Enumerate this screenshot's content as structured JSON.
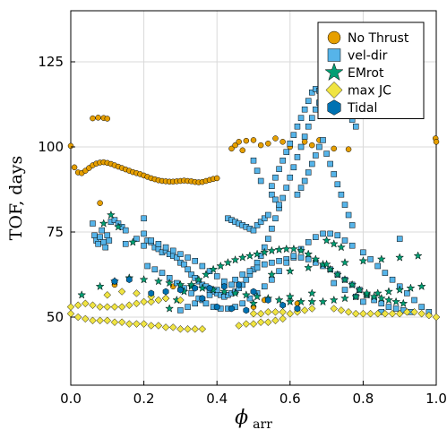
{
  "chart_data": {
    "type": "scatter",
    "xlabel": "ϕ",
    "xlabel_sub": "arr",
    "ylabel": "TOF, days",
    "xlim": [
      0.0,
      1.0
    ],
    "ylim": [
      30,
      140
    ],
    "xticks": [
      0.0,
      0.2,
      0.4,
      0.6,
      0.8,
      1.0
    ],
    "xtick_labels": [
      "0.0",
      "0.2",
      "0.4",
      "0.6",
      "0.8",
      "1.0"
    ],
    "yticks": [
      50,
      75,
      100,
      125
    ],
    "ytick_labels": [
      "50",
      "75",
      "100",
      "125"
    ],
    "grid": true,
    "legend_position": "top-right",
    "series": [
      {
        "name": "No Thrust",
        "marker": "circle",
        "color": "#E69F00",
        "x": [
          0.0,
          0.01,
          0.02,
          0.03,
          0.04,
          0.05,
          0.06,
          0.07,
          0.08,
          0.09,
          0.1,
          0.11,
          0.12,
          0.13,
          0.14,
          0.15,
          0.16,
          0.17,
          0.18,
          0.19,
          0.2,
          0.21,
          0.22,
          0.23,
          0.24,
          0.25,
          0.26,
          0.27,
          0.28,
          0.29,
          0.3,
          0.31,
          0.32,
          0.33,
          0.34,
          0.35,
          0.36,
          0.37,
          0.38,
          0.39,
          0.4,
          0.06,
          0.075,
          0.09,
          0.1,
          0.44,
          0.45,
          0.46,
          0.47,
          0.48,
          0.5,
          0.52,
          0.54,
          0.56,
          0.58,
          0.6,
          0.64,
          0.66,
          0.68,
          0.72,
          0.76,
          0.998,
          1.0,
          0.08,
          0.12,
          0.28,
          0.5,
          0.53,
          0.62
        ],
        "y": [
          100.3,
          94.0,
          92.5,
          92.3,
          93.0,
          93.8,
          94.6,
          95.1,
          95.4,
          95.5,
          95.3,
          95.0,
          94.6,
          94.2,
          93.8,
          93.4,
          93.0,
          92.6,
          92.3,
          92.0,
          91.6,
          91.2,
          90.8,
          90.5,
          90.2,
          90.0,
          89.9,
          89.8,
          89.8,
          89.9,
          90.0,
          90.1,
          90.0,
          89.9,
          89.7,
          89.6,
          89.7,
          90.0,
          90.3,
          90.6,
          90.8,
          108.4,
          108.6,
          108.5,
          108.3,
          99.5,
          100.5,
          101.5,
          99.0,
          101.8,
          102.0,
          100.5,
          101.0,
          102.5,
          101.5,
          100.0,
          101.5,
          100.5,
          102.0,
          99.5,
          99.3,
          102.5,
          101.5,
          83.5,
          59.5,
          59.0,
          53.0,
          55.0,
          54.0
        ]
      },
      {
        "name": "vel-dir",
        "marker": "square",
        "color": "#56B4E9",
        "x": [
          0.06,
          0.065,
          0.07,
          0.075,
          0.08,
          0.085,
          0.09,
          0.095,
          0.1,
          0.105,
          0.11,
          0.12,
          0.13,
          0.14,
          0.15,
          0.2,
          0.2,
          0.21,
          0.22,
          0.23,
          0.24,
          0.25,
          0.26,
          0.27,
          0.28,
          0.29,
          0.3,
          0.31,
          0.32,
          0.33,
          0.34,
          0.35,
          0.36,
          0.37,
          0.38,
          0.39,
          0.4,
          0.41,
          0.42,
          0.43,
          0.44,
          0.45,
          0.46,
          0.47,
          0.48,
          0.49,
          0.5,
          0.51,
          0.52,
          0.53,
          0.54,
          0.55,
          0.56,
          0.57,
          0.58,
          0.59,
          0.6,
          0.61,
          0.62,
          0.63,
          0.64,
          0.65,
          0.66,
          0.67,
          0.68,
          0.69,
          0.7,
          0.71,
          0.72,
          0.73,
          0.74,
          0.75,
          0.76,
          0.77,
          0.78,
          0.55,
          0.56,
          0.57,
          0.58,
          0.59,
          0.6,
          0.61,
          0.62,
          0.63,
          0.64,
          0.65,
          0.66,
          0.67,
          0.68,
          0.43,
          0.44,
          0.45,
          0.46,
          0.47,
          0.48,
          0.49,
          0.5,
          0.51,
          0.52,
          0.53,
          0.54,
          0.5,
          0.51,
          0.52,
          0.55,
          0.56,
          0.57,
          0.62,
          0.63,
          0.64,
          0.65,
          0.66,
          0.67,
          0.68,
          0.69,
          0.7,
          0.71,
          0.72,
          0.73,
          0.74,
          0.75,
          0.76,
          0.77,
          0.3,
          0.32,
          0.34,
          0.36,
          0.38,
          0.4,
          0.42,
          0.45,
          0.47,
          0.49,
          0.51,
          0.53,
          0.55,
          0.57,
          0.59,
          0.61,
          0.63,
          0.65,
          0.67,
          0.69,
          0.71,
          0.73,
          0.75,
          0.77,
          0.79,
          0.81,
          0.83,
          0.85,
          0.87,
          0.89,
          0.91,
          0.93,
          0.21,
          0.23,
          0.25,
          0.27,
          0.29,
          0.31,
          0.33,
          0.35,
          0.37,
          0.39,
          0.41,
          0.43,
          0.45,
          0.47,
          0.49,
          0.51,
          0.53,
          0.55,
          0.57,
          0.59,
          0.61,
          0.63,
          0.65,
          0.67,
          0.69,
          0.71,
          0.73,
          0.75,
          0.77,
          0.8,
          0.82,
          0.84,
          0.86,
          0.88,
          0.9,
          0.92,
          0.94,
          0.96,
          0.98,
          0.72,
          0.75,
          0.78,
          0.8,
          0.85,
          0.9,
          0.15,
          0.18,
          0.2,
          0.22,
          0.24,
          0.26,
          0.28,
          0.3,
          0.32,
          0.34,
          0.36,
          0.38,
          0.4,
          0.42,
          0.44
        ],
        "y": [
          77.5,
          74.0,
          72.5,
          71.5,
          73.5,
          75.5,
          72.0,
          70.5,
          74.0,
          72.5,
          78.0,
          78.5,
          77.5,
          76.5,
          75.5,
          79.0,
          74.5,
          72.5,
          72.0,
          70.5,
          70.0,
          69.0,
          69.5,
          68.5,
          68.0,
          67.5,
          66.0,
          65.5,
          64.0,
          62.5,
          61.5,
          60.5,
          59.5,
          59.0,
          58.0,
          57.5,
          57.0,
          56.5,
          56.0,
          56.5,
          57.0,
          57.5,
          58.5,
          59.5,
          61.0,
          62.5,
          64.0,
          66.0,
          68.0,
          70.5,
          73.0,
          76.0,
          79.0,
          82.0,
          85.0,
          88.0,
          91.0,
          94.0,
          97.0,
          100.0,
          103.0,
          106.0,
          108.5,
          111.0,
          113.0,
          114.0,
          115.5,
          116.0,
          115.5,
          115.0,
          113.5,
          112.0,
          110.0,
          108.0,
          106.0,
          88.5,
          91.0,
          93.5,
          96.0,
          98.5,
          101.0,
          103.5,
          106.0,
          108.5,
          111.0,
          113.5,
          116.0,
          117.0,
          116.5,
          79.0,
          78.5,
          78.0,
          77.5,
          77.0,
          76.5,
          76.0,
          75.5,
          77.0,
          78.0,
          79.0,
          80.0,
          96.0,
          93.0,
          90.0,
          86.0,
          84.5,
          83.0,
          86.0,
          88.0,
          90.0,
          92.5,
          95.0,
          97.5,
          100.0,
          102.0,
          98.0,
          95.0,
          92.0,
          89.0,
          86.0,
          83.0,
          80.0,
          77.0,
          52.0,
          53.0,
          54.0,
          55.0,
          56.5,
          58.0,
          59.5,
          61.0,
          62.5,
          63.5,
          64.5,
          65.5,
          66.0,
          66.5,
          67.0,
          67.5,
          67.5,
          67.0,
          66.0,
          65.0,
          64.0,
          62.5,
          61.0,
          59.5,
          58.0,
          56.5,
          55.0,
          54.0,
          53.0,
          52.5,
          52.0,
          51.5,
          65.0,
          64.0,
          63.0,
          61.5,
          60.0,
          58.5,
          57.0,
          55.5,
          54.0,
          53.0,
          52.5,
          52.5,
          53.0,
          54.0,
          55.5,
          57.0,
          59.0,
          61.0,
          63.5,
          66.0,
          68.0,
          70.0,
          72.0,
          73.5,
          74.5,
          74.5,
          74.0,
          72.5,
          71.0,
          69.0,
          67.0,
          65.0,
          63.0,
          61.0,
          59.0,
          57.0,
          55.0,
          53.0,
          51.5,
          60.0,
          58.0,
          56.0,
          54.5,
          51.5,
          73.0,
          71.5,
          73.0,
          71.0,
          72.5,
          71.5,
          70.5,
          69.5,
          68.5,
          67.5,
          66.5,
          65.0,
          63.5,
          62.0,
          60.5,
          59.5
        ]
      },
      {
        "name": "EMrot",
        "marker": "star",
        "color": "#009E73",
        "x": [
          0.03,
          0.08,
          0.12,
          0.16,
          0.2,
          0.24,
          0.27,
          0.3,
          0.33,
          0.36,
          0.39,
          0.42,
          0.45,
          0.48,
          0.51,
          0.54,
          0.57,
          0.6,
          0.63,
          0.66,
          0.69,
          0.72,
          0.75,
          0.78,
          0.81,
          0.84,
          0.87,
          0.9,
          0.93,
          0.96,
          0.27,
          0.29,
          0.31,
          0.33,
          0.35,
          0.37,
          0.39,
          0.41,
          0.43,
          0.45,
          0.47,
          0.49,
          0.51,
          0.53,
          0.55,
          0.57,
          0.59,
          0.61,
          0.63,
          0.65,
          0.67,
          0.69,
          0.71,
          0.73,
          0.75,
          0.77,
          0.79,
          0.81,
          0.83,
          0.85,
          0.87,
          0.89,
          0.91,
          0.55,
          0.6,
          0.65,
          0.7,
          0.75,
          0.8,
          0.85,
          0.9,
          0.95,
          0.7,
          0.72,
          0.74,
          0.5,
          0.6,
          0.66,
          0.09,
          0.11,
          0.13,
          0.17
        ],
        "y": [
          56.5,
          59.0,
          60.5,
          61.5,
          61.0,
          60.5,
          60.0,
          59.5,
          59.0,
          58.5,
          58.0,
          57.5,
          57.0,
          56.5,
          56.0,
          55.5,
          55.0,
          54.5,
          54.5,
          54.5,
          54.5,
          55.0,
          55.5,
          56.0,
          56.5,
          57.0,
          57.5,
          58.0,
          58.5,
          59.0,
          52.5,
          55.0,
          57.5,
          59.5,
          61.0,
          62.5,
          64.0,
          65.0,
          66.0,
          66.8,
          67.5,
          68.0,
          68.5,
          69.0,
          69.5,
          69.8,
          70.0,
          70.0,
          69.5,
          68.5,
          67.0,
          65.5,
          64.0,
          62.5,
          61.0,
          59.5,
          58.0,
          57.0,
          56.0,
          55.5,
          55.0,
          54.5,
          54.0,
          62.5,
          63.5,
          64.5,
          65.5,
          66.0,
          66.5,
          67.0,
          67.5,
          68.0,
          72.5,
          71.5,
          70.5,
          54.0,
          56.0,
          57.0,
          77.5,
          80.0,
          76.5,
          72.0
        ]
      },
      {
        "name": "max JC",
        "marker": "diamond",
        "color": "#F0E442",
        "x": [
          0.0,
          0.02,
          0.04,
          0.06,
          0.08,
          0.1,
          0.12,
          0.14,
          0.16,
          0.18,
          0.2,
          0.22,
          0.24,
          0.26,
          0.28,
          0.3,
          0.32,
          0.34,
          0.36,
          0.0,
          0.02,
          0.04,
          0.06,
          0.08,
          0.1,
          0.12,
          0.14,
          0.16,
          0.18,
          0.2,
          0.22,
          0.24,
          0.26,
          0.46,
          0.48,
          0.5,
          0.52,
          0.54,
          0.56,
          0.58,
          0.5,
          0.52,
          0.54,
          0.56,
          0.58,
          0.6,
          0.62,
          0.64,
          0.66,
          0.72,
          0.74,
          0.76,
          0.78,
          0.8,
          0.82,
          0.84,
          0.86,
          0.88,
          0.9,
          0.92,
          0.94,
          0.96,
          0.98,
          1.0,
          0.1,
          0.14,
          0.18,
          0.22,
          0.26,
          0.3
        ],
        "y": [
          51.0,
          50.0,
          49.5,
          49.0,
          49.0,
          49.0,
          48.5,
          48.5,
          48.0,
          48.0,
          48.0,
          47.5,
          47.5,
          47.0,
          47.0,
          46.5,
          46.5,
          46.5,
          46.5,
          53.0,
          53.5,
          54.0,
          53.5,
          53.0,
          53.0,
          53.0,
          53.0,
          53.5,
          54.0,
          54.5,
          54.5,
          55.0,
          55.5,
          47.5,
          48.0,
          48.0,
          48.5,
          48.5,
          49.0,
          49.5,
          51.0,
          51.0,
          51.5,
          51.5,
          51.5,
          51.0,
          51.5,
          52.0,
          52.5,
          52.5,
          52.0,
          51.5,
          51.0,
          51.0,
          51.0,
          51.0,
          51.0,
          51.0,
          51.0,
          51.5,
          51.5,
          51.0,
          50.5,
          50.0,
          56.5,
          57.5,
          57.0,
          56.0,
          55.5,
          55.0
        ]
      },
      {
        "name": "Tidal",
        "marker": "hexagon",
        "color": "#0072B2",
        "x": [
          0.12,
          0.16,
          0.22,
          0.26,
          0.3,
          0.34,
          0.38,
          0.42,
          0.46,
          0.5,
          0.54,
          0.58,
          0.62,
          0.36,
          0.4,
          0.44,
          0.48
        ],
        "y": [
          60.5,
          61.0,
          57.0,
          57.5,
          58.0,
          58.5,
          58.5,
          59.0,
          59.5,
          57.5,
          55.0,
          53.5,
          52.5,
          55.5,
          53.0,
          52.5,
          52.0
        ]
      }
    ]
  }
}
